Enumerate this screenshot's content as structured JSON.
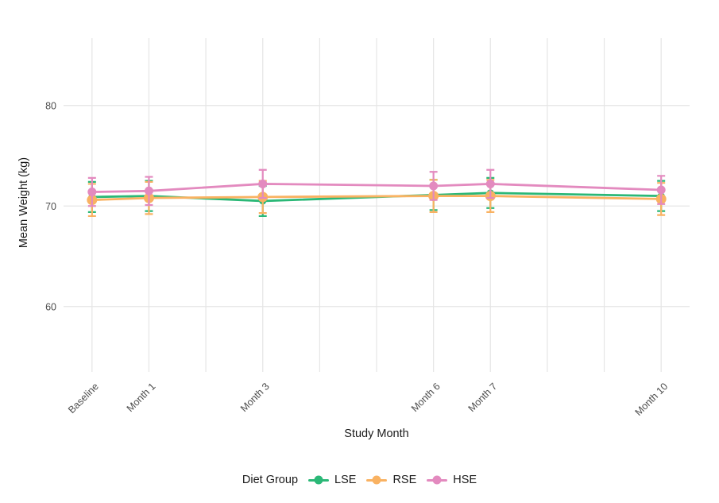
{
  "chart_data": {
    "type": "line",
    "title": "",
    "xlabel": "Study Month",
    "ylabel": "Mean Weight (kg)",
    "legend_title": "Diet Group",
    "legend_position": "bottom",
    "grid": "light gray major gridlines on white background, minimal theme, no axis lines",
    "x_tick_labels": [
      "Baseline",
      "Month 1",
      "Month 3",
      "Month 6",
      "Month 7",
      "Month 10"
    ],
    "x_positions_months": [
      0,
      1,
      3,
      6,
      7,
      10
    ],
    "x_gridline_months": [
      0,
      1,
      2,
      3,
      4,
      5,
      6,
      7,
      8,
      9,
      10
    ],
    "x_range": [
      -0.5,
      10.5
    ],
    "y_ticks": [
      60,
      70,
      80
    ],
    "y_range": [
      53.5,
      86.7
    ],
    "x_tick_label_rotation_deg": -45,
    "gridline_color": "#E5E5E5",
    "tick_text_color": "#4D4D4D",
    "title_text_color": "#1A1A1A",
    "series": [
      {
        "name": "LSE",
        "color": "#2BB877",
        "values": [
          70.9,
          71.0,
          70.5,
          71.1,
          71.3,
          71.0
        ],
        "error_bar": 1.5
      },
      {
        "name": "RSE",
        "color": "#F9B262",
        "values": [
          70.6,
          70.8,
          70.9,
          71.0,
          71.0,
          70.7
        ],
        "error_bar": 1.6
      },
      {
        "name": "HSE",
        "color": "#E38ABF",
        "values": [
          71.4,
          71.5,
          72.2,
          72.0,
          72.2,
          71.6
        ],
        "error_bar": 1.4
      }
    ]
  }
}
